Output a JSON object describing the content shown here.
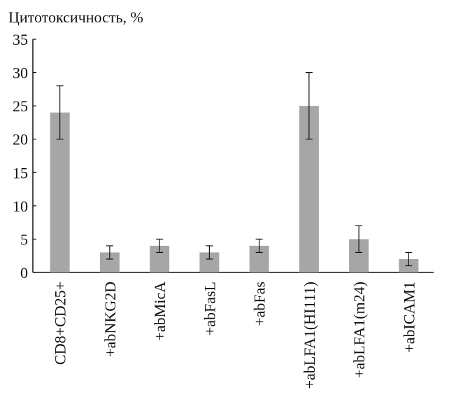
{
  "chart_data": {
    "type": "bar",
    "ylabel": "Цитотоксичность, %",
    "ylim": [
      0,
      35
    ],
    "yticks": [
      0,
      5,
      10,
      15,
      20,
      25,
      30,
      35
    ],
    "categories": [
      "CD8+CD25+",
      "+abNKG2D",
      "+abMicA",
      "+abFasL",
      "+abFas",
      "+abLFA1(HI111)",
      "+abLFA1(m24)",
      "+abICAM1"
    ],
    "values": [
      24,
      3,
      4,
      3,
      4,
      25,
      5,
      2
    ],
    "errors": [
      4,
      1,
      1,
      1,
      1,
      5,
      2,
      1
    ],
    "bar_color": "#a6a6a6",
    "grid": false
  }
}
